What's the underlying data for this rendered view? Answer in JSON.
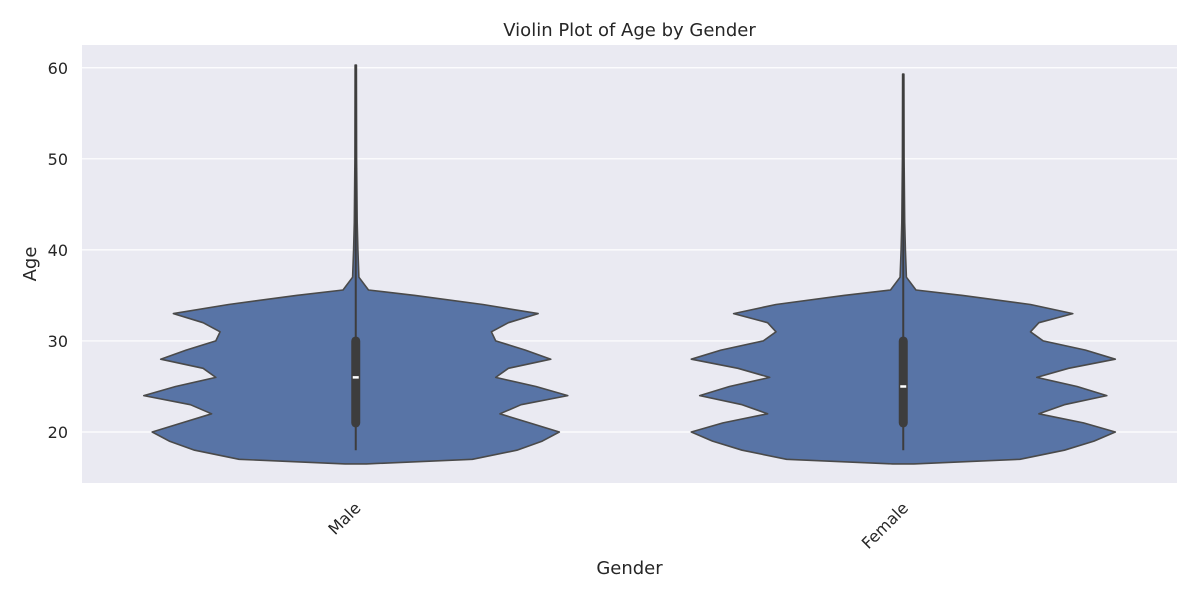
{
  "chart_data": {
    "type": "violin",
    "title": "Violin Plot of Age by Gender",
    "xlabel": "Gender",
    "ylabel": "Age",
    "ylim": [
      14.4,
      62.5
    ],
    "yticks": [
      20,
      30,
      40,
      50,
      60
    ],
    "grid": true,
    "categories": [
      "Male",
      "Female"
    ],
    "series": [
      {
        "category": "Male",
        "min": 18,
        "q1": 21,
        "median": 26,
        "q3": 30,
        "max": 60.3,
        "density": [
          [
            16.5,
            0.05
          ],
          [
            17.0,
            0.55
          ],
          [
            18.0,
            0.76
          ],
          [
            19.0,
            0.88
          ],
          [
            20.0,
            0.96
          ],
          [
            21.0,
            0.82
          ],
          [
            22.0,
            0.68
          ],
          [
            23.0,
            0.78
          ],
          [
            24.0,
            1.0
          ],
          [
            25.0,
            0.85
          ],
          [
            26.0,
            0.66
          ],
          [
            27.0,
            0.72
          ],
          [
            28.0,
            0.92
          ],
          [
            29.0,
            0.8
          ],
          [
            30.0,
            0.66
          ],
          [
            31.0,
            0.64
          ],
          [
            32.0,
            0.72
          ],
          [
            33.0,
            0.86
          ],
          [
            34.0,
            0.6
          ],
          [
            35.0,
            0.28
          ],
          [
            35.6,
            0.06
          ],
          [
            37.0,
            0.015
          ],
          [
            40.0,
            0.01
          ],
          [
            43.0,
            0.007
          ],
          [
            50.0,
            0.004
          ],
          [
            60.3,
            0.003
          ]
        ]
      },
      {
        "category": "Female",
        "min": 18,
        "q1": 21,
        "median": 25,
        "q3": 30,
        "max": 59.3,
        "density": [
          [
            16.5,
            0.05
          ],
          [
            17.0,
            0.55
          ],
          [
            18.0,
            0.76
          ],
          [
            19.0,
            0.9
          ],
          [
            20.0,
            1.0
          ],
          [
            21.0,
            0.85
          ],
          [
            22.0,
            0.64
          ],
          [
            23.0,
            0.76
          ],
          [
            24.0,
            0.96
          ],
          [
            25.0,
            0.82
          ],
          [
            26.0,
            0.63
          ],
          [
            27.0,
            0.78
          ],
          [
            28.0,
            1.0
          ],
          [
            29.0,
            0.86
          ],
          [
            30.0,
            0.66
          ],
          [
            31.0,
            0.6
          ],
          [
            32.0,
            0.64
          ],
          [
            33.0,
            0.8
          ],
          [
            34.0,
            0.6
          ],
          [
            35.0,
            0.28
          ],
          [
            35.6,
            0.06
          ],
          [
            37.0,
            0.015
          ],
          [
            40.0,
            0.01
          ],
          [
            43.0,
            0.007
          ],
          [
            50.0,
            0.004
          ],
          [
            59.3,
            0.003
          ]
        ]
      }
    ],
    "colors": {
      "background": "#eaeaf2",
      "violin_fill": "#5874a6",
      "violin_edge": "#4a4a4a",
      "grid": "#ffffff"
    }
  }
}
